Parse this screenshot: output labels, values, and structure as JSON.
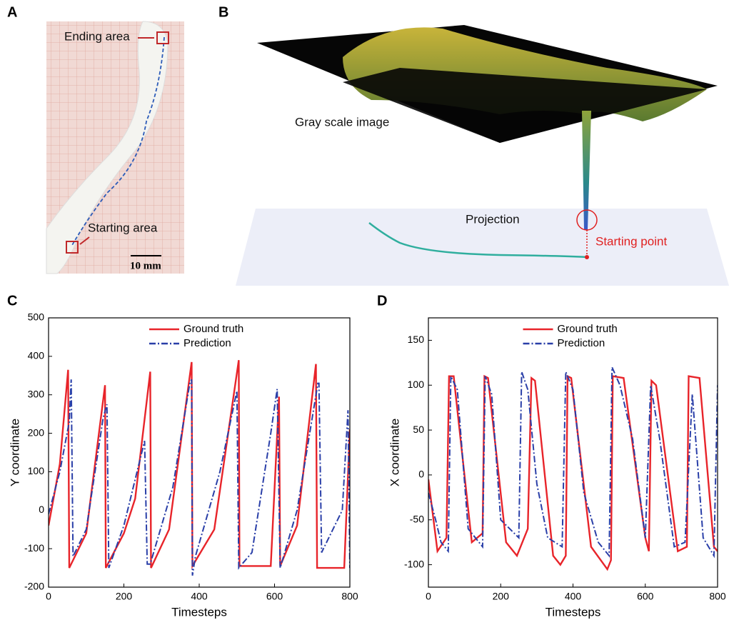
{
  "panels": {
    "a": {
      "label": "A",
      "ending": "Ending area",
      "starting": "Starting area",
      "scale": "10 mm"
    },
    "b": {
      "label": "B",
      "gray": "Gray scale image",
      "projection": "Projection",
      "start": "Starting point"
    },
    "c": {
      "label": "C"
    },
    "d": {
      "label": "D"
    }
  },
  "chart_data": [
    {
      "type": "line",
      "xlabel": "Timesteps",
      "ylabel": "Y coordinate",
      "xlim": [
        0,
        800
      ],
      "ylim": [
        -200,
        500
      ],
      "xticks": [
        0,
        200,
        400,
        600,
        800
      ],
      "yticks": [
        -200,
        -100,
        0,
        100,
        200,
        300,
        400,
        500
      ],
      "series": [
        {
          "name": "Ground truth",
          "color": "#e8242a",
          "dash": "solid",
          "x": [
            0,
            30,
            52,
            55,
            100,
            150,
            152,
            200,
            230,
            270,
            272,
            320,
            380,
            382,
            440,
            505,
            507,
            590,
            612,
            615,
            660,
            710,
            713,
            785,
            800
          ],
          "values": [
            -40,
            120,
            365,
            -150,
            -60,
            325,
            -150,
            -60,
            30,
            360,
            -150,
            -50,
            385,
            -145,
            -50,
            390,
            -145,
            -145,
            295,
            -145,
            -40,
            380,
            -150,
            -150,
            210
          ]
        },
        {
          "name": "Prediction",
          "color": "#2a3fa8",
          "dash": "dashdot",
          "x": [
            0,
            30,
            55,
            60,
            65,
            100,
            145,
            155,
            160,
            200,
            255,
            262,
            270,
            330,
            375,
            380,
            382,
            390,
            455,
            500,
            505,
            540,
            590,
            607,
            615,
            660,
            715,
            718,
            725,
            780,
            795,
            800
          ],
          "values": [
            -10,
            100,
            230,
            340,
            -120,
            -50,
            240,
            275,
            -150,
            -40,
            180,
            -140,
            -140,
            60,
            330,
            340,
            -170,
            -120,
            100,
            310,
            -150,
            -110,
            200,
            315,
            -150,
            0,
            330,
            330,
            -110,
            0,
            260,
            -150
          ]
        }
      ]
    },
    {
      "type": "line",
      "xlabel": "Timesteps",
      "ylabel": "X coordinate",
      "xlim": [
        0,
        800
      ],
      "ylim": [
        -125,
        175
      ],
      "xticks": [
        0,
        200,
        400,
        600,
        800
      ],
      "yticks": [
        -100,
        -50,
        0,
        50,
        100,
        150
      ],
      "series": [
        {
          "name": "Ground truth",
          "color": "#e8242a",
          "dash": "solid",
          "x": [
            0,
            25,
            50,
            57,
            70,
            120,
            150,
            155,
            165,
            215,
            245,
            275,
            285,
            295,
            345,
            365,
            380,
            385,
            395,
            450,
            495,
            505,
            510,
            540,
            600,
            610,
            617,
            630,
            690,
            715,
            720,
            750,
            790,
            800
          ],
          "values": [
            -5,
            -85,
            -70,
            110,
            110,
            -75,
            -65,
            110,
            108,
            -75,
            -90,
            -60,
            108,
            105,
            -90,
            -100,
            -90,
            110,
            108,
            -80,
            -105,
            -95,
            110,
            108,
            -70,
            -85,
            105,
            100,
            -85,
            -80,
            110,
            108,
            -80,
            -85
          ]
        },
        {
          "name": "Prediction",
          "color": "#2a3fa8",
          "dash": "dashdot",
          "x": [
            0,
            20,
            35,
            55,
            62,
            80,
            110,
            150,
            157,
            175,
            200,
            250,
            258,
            275,
            300,
            330,
            370,
            380,
            400,
            430,
            470,
            500,
            508,
            530,
            565,
            600,
            615,
            640,
            680,
            710,
            730,
            760,
            790,
            800
          ],
          "values": [
            -20,
            -50,
            -75,
            -85,
            110,
            95,
            -60,
            -80,
            110,
            90,
            -50,
            -70,
            115,
            95,
            -10,
            -70,
            -80,
            115,
            95,
            -20,
            -75,
            -90,
            120,
            100,
            40,
            -70,
            100,
            40,
            -80,
            -75,
            90,
            -70,
            -90,
            100
          ]
        }
      ]
    }
  ]
}
